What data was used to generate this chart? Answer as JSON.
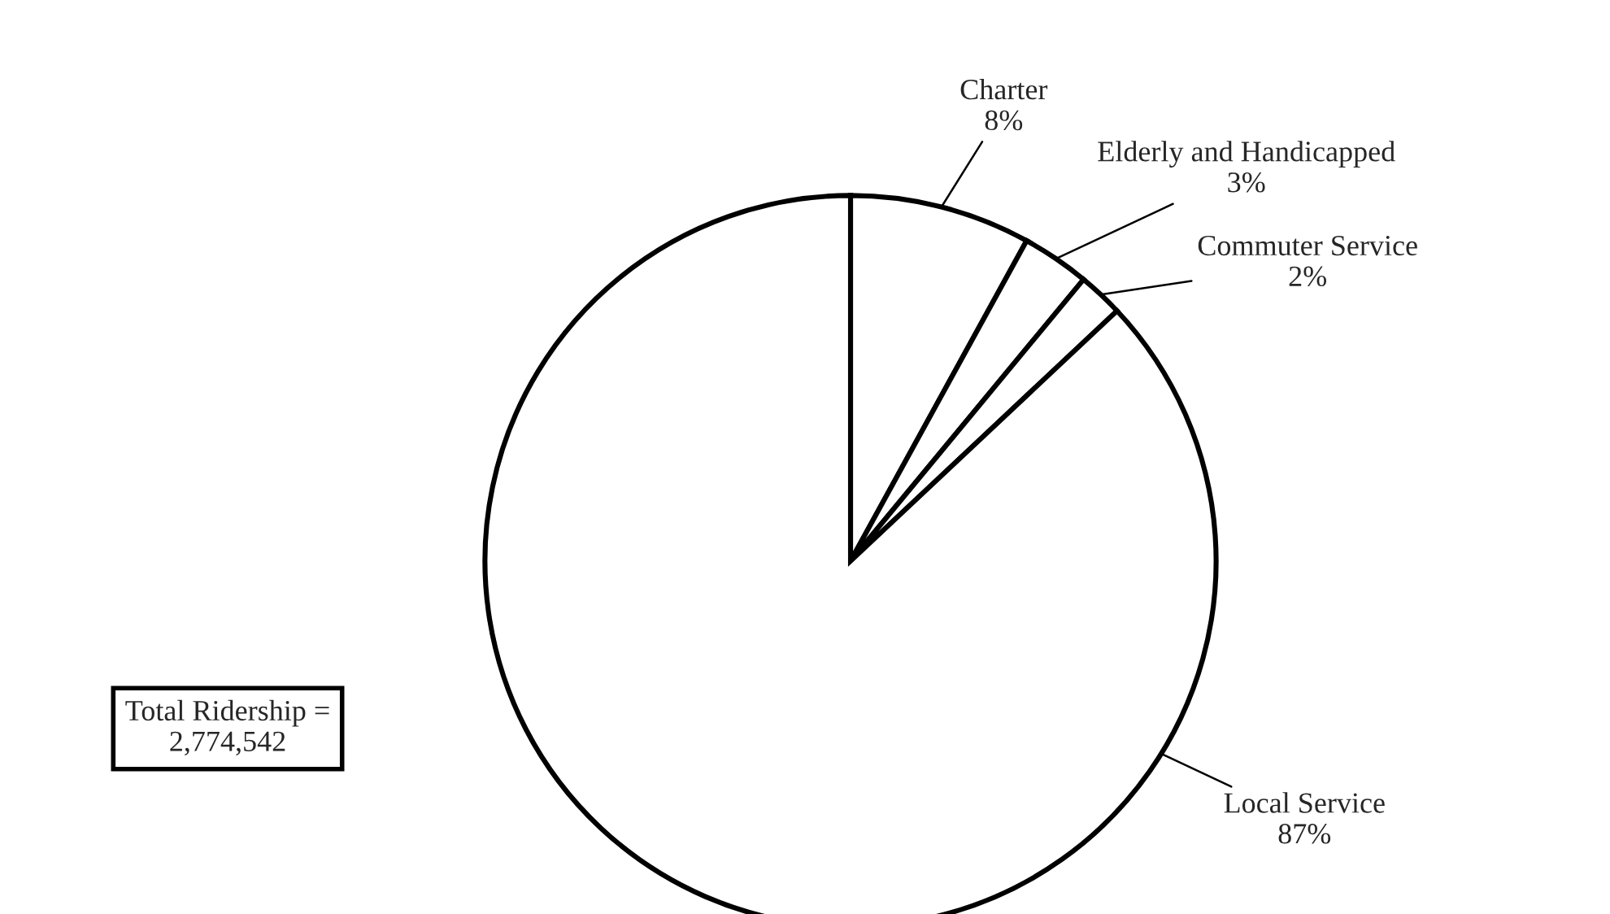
{
  "chart_data": {
    "type": "pie",
    "categories": [
      "Charter",
      "Elderly and Handicapped",
      "Commuter Service",
      "Local Service"
    ],
    "values": [
      8,
      3,
      2,
      87
    ],
    "value_labels": [
      "8%",
      "3%",
      "2%",
      "87%"
    ],
    "colors": [
      "#ffffff",
      "#ffffff",
      "#ffffff",
      "#ffffff"
    ],
    "annotations": [
      "Total Ridership =\n2,774,542"
    ]
  }
}
